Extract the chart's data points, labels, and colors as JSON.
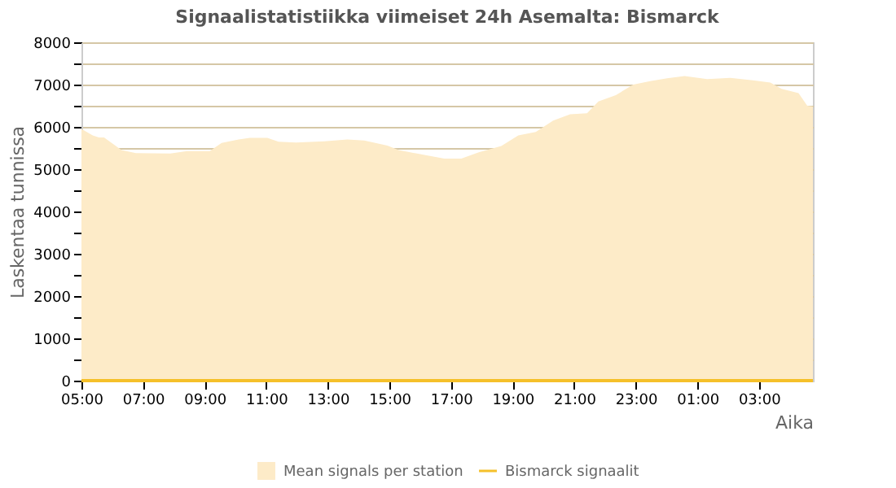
{
  "chart_data": {
    "type": "area",
    "title": "Signaalistatistiikka viimeiset 24h Asemalta: Bismarck",
    "xlabel": "Aika",
    "ylabel": "Laskentaa tunnissa",
    "x": [
      "--01-01T05:00",
      "--01-01T05:22",
      "--01-01T05:34",
      "--01-01T05:44",
      "--01-01T06:01",
      "--01-01T06:18",
      "--01-01T06:46",
      "--01-01T07:53",
      "--01-01T08:26",
      "--01-01T09:10",
      "--01-01T09:33",
      "--01-01T10:06",
      "--01-01T10:28",
      "--01-01T11:02",
      "--01-01T11:24",
      "--01-01T11:58",
      "--01-01T12:53",
      "--01-01T13:38",
      "--01-01T14:11",
      "--01-01T14:56",
      "--01-01T15:18",
      "--01-01T16:02",
      "--01-01T16:47",
      "--01-01T17:20",
      "--01-01T17:54",
      "--01-01T18:38",
      "--01-01T19:11",
      "--01-01T19:45",
      "--01-01T20:19",
      "--01-01T20:52",
      "--01-01T21:25",
      "--01-01T21:47",
      "--01-01T22:21",
      "--01-01T22:55",
      "--01-01T23:28",
      "--01-02T00:01",
      "--01-02T00:35",
      "--01-02T01:19",
      "--01-02T02:04",
      "--01-02T02:48",
      "--01-02T03:22",
      "--01-02T03:44",
      "--01-02T04:17",
      "--01-02T04:34",
      "--01-02T04:45"
    ],
    "series": [
      {
        "name": "Mean signals per station",
        "type": "area",
        "color": "#fdebc8",
        "values": [
          5950,
          5800,
          5750,
          5750,
          5600,
          5450,
          5380,
          5370,
          5430,
          5430,
          5620,
          5700,
          5740,
          5740,
          5650,
          5630,
          5660,
          5700,
          5680,
          5560,
          5450,
          5350,
          5250,
          5250,
          5400,
          5550,
          5800,
          5880,
          6150,
          6300,
          6320,
          6600,
          6750,
          7000,
          7080,
          7150,
          7200,
          7130,
          7160,
          7100,
          7050,
          6900,
          6800,
          6500,
          6480
        ]
      },
      {
        "name": "Bismarck signaalit",
        "type": "line",
        "color": "#f5c02a",
        "values": [
          0,
          0,
          0,
          0,
          0,
          0,
          0,
          0,
          0,
          0,
          0,
          0,
          0,
          0,
          0,
          0,
          0,
          0,
          0,
          0,
          0,
          0,
          0,
          0,
          0,
          0,
          0,
          0,
          0,
          0,
          0,
          0,
          0,
          0,
          0,
          0,
          0,
          0,
          0,
          0,
          0,
          0,
          0,
          0,
          0
        ]
      }
    ],
    "xlim": [
      "--01-01T05:00",
      "--01-02T04:45"
    ],
    "xticks": [
      {
        "value": "--01-01T05:00",
        "label": "05:00"
      },
      {
        "value": "--01-01T07:00",
        "label": "07:00"
      },
      {
        "value": "--01-01T09:00",
        "label": "09:00"
      },
      {
        "value": "--01-01T11:00",
        "label": "11:00"
      },
      {
        "value": "--01-01T13:00",
        "label": "13:00"
      },
      {
        "value": "--01-01T15:00",
        "label": "15:00"
      },
      {
        "value": "--01-01T17:00",
        "label": "17:00"
      },
      {
        "value": "--01-01T19:00",
        "label": "19:00"
      },
      {
        "value": "--01-01T21:00",
        "label": "21:00"
      },
      {
        "value": "--01-01T23:00",
        "label": "23:00"
      },
      {
        "value": "--01-02T01:00",
        "label": "01:00"
      },
      {
        "value": "--01-02T03:00",
        "label": "03:00"
      }
    ],
    "ylim": [
      0,
      8000
    ],
    "yticks": [
      0,
      {
        "value": 500,
        "label": null
      },
      1000,
      {
        "value": 1500,
        "label": null
      },
      2000,
      {
        "value": 2500,
        "label": null
      },
      3000,
      {
        "value": 3500,
        "label": null
      },
      4000,
      {
        "value": 4500,
        "label": null
      },
      5000,
      {
        "value": 5500,
        "label": null
      },
      6000,
      {
        "value": 6500,
        "label": null
      },
      7000,
      {
        "value": 7500,
        "label": null
      },
      8000
    ],
    "grid": "y",
    "legend": "bottom"
  }
}
